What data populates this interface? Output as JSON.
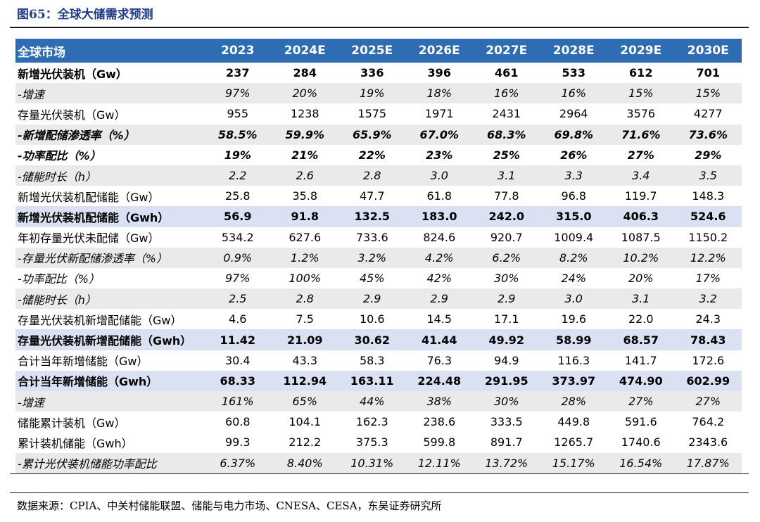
{
  "figure_title": "图65：全球大储需求预测",
  "header": [
    "全球市场",
    "2023",
    "2024E",
    "2025E",
    "2026E",
    "2027E",
    "2028E",
    "2029E",
    "2030E"
  ],
  "rows": [
    {
      "style": "bold",
      "cells": [
        "新增光伏装机（Gw）",
        "237",
        "284",
        "336",
        "396",
        "461",
        "533",
        "612",
        "701"
      ]
    },
    {
      "style": "ital gray",
      "cells": [
        "-增速",
        "97%",
        "20%",
        "19%",
        "18%",
        "16%",
        "16%",
        "15%",
        "15%"
      ]
    },
    {
      "style": "",
      "cells": [
        "存量光伏装机（Gw）",
        "955",
        "1238",
        "1575",
        "1971",
        "2431",
        "2964",
        "3576",
        "4277"
      ]
    },
    {
      "style": "bold ital gray",
      "cells": [
        "-新增配储渗透率（%）",
        "58.5%",
        "59.9%",
        "65.9%",
        "67.0%",
        "68.3%",
        "69.8%",
        "71.6%",
        "73.6%"
      ]
    },
    {
      "style": "bold ital",
      "cells": [
        "-功率配比（%）",
        "19%",
        "21%",
        "22%",
        "23%",
        "25%",
        "26%",
        "27%",
        "29%"
      ]
    },
    {
      "style": "ital gray",
      "cells": [
        "-储能时长（h）",
        "2.2",
        "2.6",
        "2.8",
        "3.0",
        "3.1",
        "3.3",
        "3.4",
        "3.5"
      ]
    },
    {
      "style": "",
      "cells": [
        "新增光伏装机配储能（Gw）",
        "25.8",
        "35.8",
        "47.7",
        "61.8",
        "77.8",
        "96.8",
        "119.7",
        "148.3"
      ]
    },
    {
      "style": "bold band",
      "cells": [
        "新增光伏装机配储能（Gwh）",
        "56.9",
        "91.8",
        "132.5",
        "183.0",
        "242.0",
        "315.0",
        "406.3",
        "524.6"
      ]
    },
    {
      "style": "",
      "cells": [
        "年初存量光伏未配储（Gw）",
        "534.2",
        "627.6",
        "733.6",
        "824.6",
        "920.7",
        "1009.4",
        "1087.5",
        "1150.2"
      ]
    },
    {
      "style": "ital gray",
      "cells": [
        "-存量光伏新配储渗透率（%）",
        "0.9%",
        "1.2%",
        "3.2%",
        "4.2%",
        "6.2%",
        "8.2%",
        "10.2%",
        "12.2%"
      ]
    },
    {
      "style": "ital",
      "cells": [
        "-功率配比（%）",
        "97%",
        "100%",
        "45%",
        "42%",
        "30%",
        "24%",
        "20%",
        "17%"
      ]
    },
    {
      "style": "ital gray",
      "cells": [
        "-储能时长（h）",
        "2.5",
        "2.8",
        "2.9",
        "2.9",
        "2.9",
        "3.0",
        "3.1",
        "3.2"
      ]
    },
    {
      "style": "",
      "cells": [
        "存量光伏装机新增配储能（Gw）",
        "4.6",
        "7.5",
        "10.6",
        "14.5",
        "17.1",
        "19.6",
        "22.0",
        "24.3"
      ]
    },
    {
      "style": "bold band",
      "cells": [
        "存量光伏装机新增配储能（Gwh）",
        "11.42",
        "21.09",
        "30.62",
        "41.44",
        "49.92",
        "58.99",
        "68.57",
        "78.43"
      ]
    },
    {
      "style": "",
      "cells": [
        "合计当年新增储能（Gw）",
        "30.4",
        "43.3",
        "58.3",
        "76.3",
        "94.9",
        "116.3",
        "141.7",
        "172.6"
      ]
    },
    {
      "style": "bold band",
      "cells": [
        "合计当年新增储能（Gwh）",
        "68.33",
        "112.94",
        "163.11",
        "224.48",
        "291.95",
        "373.97",
        "474.90",
        "602.99"
      ]
    },
    {
      "style": "ital gray",
      "cells": [
        "-增速",
        "161%",
        "65%",
        "44%",
        "38%",
        "30%",
        "28%",
        "27%",
        "27%"
      ]
    },
    {
      "style": "",
      "cells": [
        "储能累计装机（Gw）",
        "60.8",
        "104.1",
        "162.3",
        "238.6",
        "333.5",
        "449.8",
        "591.6",
        "764.2"
      ]
    },
    {
      "style": "",
      "cells": [
        "累计装机储能（Gwh）",
        "99.3",
        "212.2",
        "375.3",
        "599.8",
        "891.7",
        "1265.7",
        "1740.6",
        "2343.6"
      ]
    },
    {
      "style": "ital gray",
      "cells": [
        "-累计光伏装机储能功率配比",
        "6.37%",
        "8.40%",
        "10.31%",
        "12.11%",
        "13.72%",
        "15.17%",
        "16.54%",
        "17.87%"
      ]
    }
  ],
  "source": "数据来源：CPIA、中关村储能联盟、储能与电力市场、CNESA、CESA，东吴证券研究所",
  "colors": {
    "header_bg": "#2e6db4",
    "band": "#d9e1f2",
    "gray": "#eaeaea",
    "title": "#1f3c88"
  }
}
